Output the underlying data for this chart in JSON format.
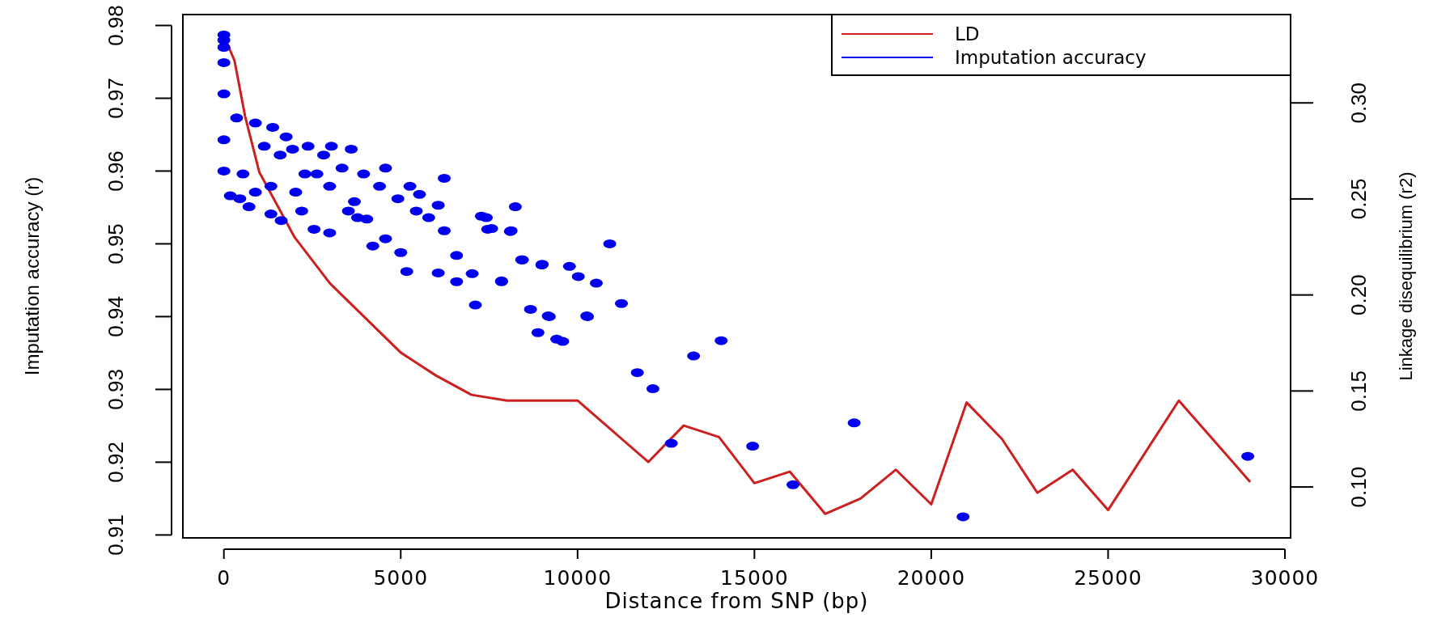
{
  "chart_data": {
    "type": "scatter",
    "xlabel": "Distance from SNP (bp)",
    "ylabel": "Imputation accuracy (r)",
    "y2label": "Linkage disequilibrium (r2)",
    "xlim": [
      -1160,
      30160
    ],
    "xticks": [
      0,
      5000,
      10000,
      15000,
      20000,
      25000,
      30000
    ],
    "ylim": [
      0.9096,
      0.9815
    ],
    "yticks": [
      0.91,
      0.92,
      0.93,
      0.94,
      0.95,
      0.96,
      0.97,
      0.98
    ],
    "y2lim": [
      0.0735,
      0.346
    ],
    "y2ticks": [
      {
        "value": 0.1,
        "label": "0.10"
      },
      0.15,
      {
        "value": 0.2,
        "label": "0.20"
      },
      0.25,
      {
        "value": 0.3,
        "label": "0.30"
      }
    ],
    "legend": "top right",
    "series": [
      {
        "name": "LD",
        "type": "line",
        "axis": "y2",
        "marker": "none",
        "color": "#cc2020",
        "x": [
          0,
          300,
          600,
          1000,
          2000,
          3000,
          4000,
          5000,
          6000,
          7000,
          8000,
          10000,
          12000,
          13000,
          14000,
          15000,
          16000,
          17000,
          18000,
          19000,
          20000,
          21000,
          22000,
          23000,
          24000,
          25000,
          27000,
          29000
        ],
        "values": [
          0.335,
          0.322,
          0.293,
          0.264,
          0.23,
          0.206,
          0.188,
          0.17,
          0.158,
          0.148,
          0.145,
          0.145,
          0.113,
          0.132,
          0.126,
          0.102,
          0.108,
          0.086,
          0.094,
          0.109,
          0.091,
          0.144,
          0.125,
          0.097,
          0.109,
          0.088,
          0.145,
          0.103
        ]
      },
      {
        "name": "Imputation accuracy",
        "marker": "circle",
        "color": "#0000ee",
        "x": [
          0,
          0,
          0,
          0,
          0,
          0,
          0,
          180,
          360,
          540,
          450,
          710,
          890,
          890,
          1140,
          1330,
          1330,
          1380,
          1590,
          1620,
          1760,
          1940,
          2030,
          2200,
          2290,
          2380,
          2550,
          2630,
          2820,
          2990,
          2990,
          3040,
          3340,
          3520,
          3600,
          3690,
          3780,
          3950,
          4040,
          4210,
          4400,
          4570,
          4570,
          4920,
          5000,
          5170,
          5260,
          5440,
          5530,
          5790,
          6060,
          6060,
          6230,
          6230,
          6580,
          6580,
          7020,
          7110,
          7280,
          7420,
          7460,
          7570,
          7850,
          7850,
          8100,
          8120,
          8240,
          8420,
          8440,
          8670,
          8880,
          8990,
          9000,
          9170,
          9200,
          9410,
          9580,
          9770,
          10020,
          10260,
          10280,
          10530,
          10910,
          11240,
          11690,
          12130,
          12650,
          13280,
          14060,
          14950,
          16090,
          17820,
          20900,
          28950
        ],
        "values": [
          0.9787,
          0.978,
          0.977,
          0.9749,
          0.9706,
          0.9643,
          0.96,
          0.9566,
          0.9673,
          0.9596,
          0.9562,
          0.9551,
          0.9666,
          0.9571,
          0.9634,
          0.9579,
          0.9541,
          0.966,
          0.9622,
          0.9532,
          0.9647,
          0.963,
          0.9571,
          0.9545,
          0.9596,
          0.9634,
          0.952,
          0.9596,
          0.9622,
          0.9515,
          0.9579,
          0.9634,
          0.9604,
          0.9545,
          0.963,
          0.9558,
          0.9536,
          0.9596,
          0.9534,
          0.9497,
          0.9579,
          0.9604,
          0.9507,
          0.9562,
          0.9488,
          0.9462,
          0.9579,
          0.9545,
          0.9568,
          0.9536,
          0.9553,
          0.946,
          0.959,
          0.9518,
          0.9448,
          0.9484,
          0.9459,
          0.9416,
          0.9538,
          0.9536,
          0.952,
          0.9521,
          0.9448,
          0.9449,
          0.9517,
          0.9518,
          0.9551,
          0.9478,
          0.9478,
          0.941,
          0.9378,
          0.9471,
          0.9472,
          0.9401,
          0.94,
          0.9369,
          0.9366,
          0.9469,
          0.9455,
          0.9401,
          0.94,
          0.9446,
          0.95,
          0.9418,
          0.9323,
          0.9301,
          0.9226,
          0.9346,
          0.9367,
          0.9222,
          0.9169,
          0.9254,
          0.9125,
          0.9208
        ]
      }
    ]
  }
}
